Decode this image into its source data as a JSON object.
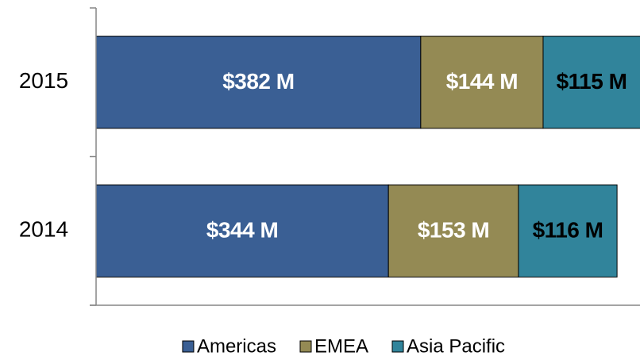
{
  "chart_data": {
    "type": "stacked-bar-horizontal",
    "categories": [
      "2015",
      "2014"
    ],
    "xlim": [
      0,
      640
    ],
    "series": [
      {
        "name": "Americas",
        "color": "#3a5f94",
        "label_color": "#ffffff",
        "values": [
          382,
          344
        ],
        "value_labels": [
          "$382 M",
          "$344 M"
        ]
      },
      {
        "name": "EMEA",
        "color": "#948a54",
        "label_color": "#ffffff",
        "values": [
          144,
          153
        ],
        "value_labels": [
          "$144 M",
          "$153 M"
        ]
      },
      {
        "name": "Asia Pacific",
        "color": "#31849b",
        "label_color": "#000000",
        "values": [
          115,
          116
        ],
        "value_labels": [
          "$115 M",
          "$116 M"
        ]
      }
    ],
    "legend": "bottom"
  }
}
